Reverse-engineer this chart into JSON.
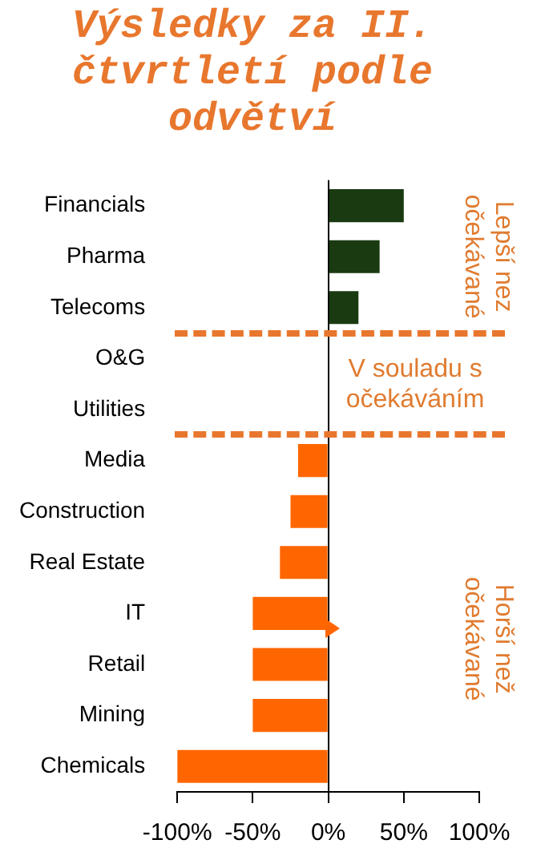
{
  "chart_data": {
    "type": "bar",
    "orientation": "horizontal",
    "title": "Výsledky za II. čtvrtletí podle odvětví",
    "categories": [
      "Financials",
      "Pharma",
      "Telecoms",
      "O&G",
      "Utilities",
      "Media",
      "Construction",
      "Real Estate",
      "IT",
      "Retail",
      "Mining",
      "Chemicals"
    ],
    "values": [
      50,
      34,
      20,
      0,
      0,
      -20,
      -25,
      -32,
      -50,
      -50,
      -50,
      -100
    ],
    "colors": [
      "#1a3a12",
      "#1a3a12",
      "#1a3a12",
      "#ff6600",
      "#ff6600",
      "#ff6600",
      "#ff6600",
      "#ff6600",
      "#ff6600",
      "#ff6600",
      "#ff6600",
      "#ff6600"
    ],
    "xlim": [
      -100,
      100
    ],
    "xticks": [
      {
        "value": -100,
        "label": "-100%"
      },
      {
        "value": -50,
        "label": "-50%"
      },
      {
        "value": 0,
        "label": "0%"
      },
      {
        "value": 50,
        "label": "50%"
      },
      {
        "value": 100,
        "label": "100%"
      }
    ],
    "annotations": [
      "Lepší nez očekávané",
      "V souladu s očekáváním",
      "Horší než očekávané"
    ],
    "grid": false,
    "legend": false
  }
}
